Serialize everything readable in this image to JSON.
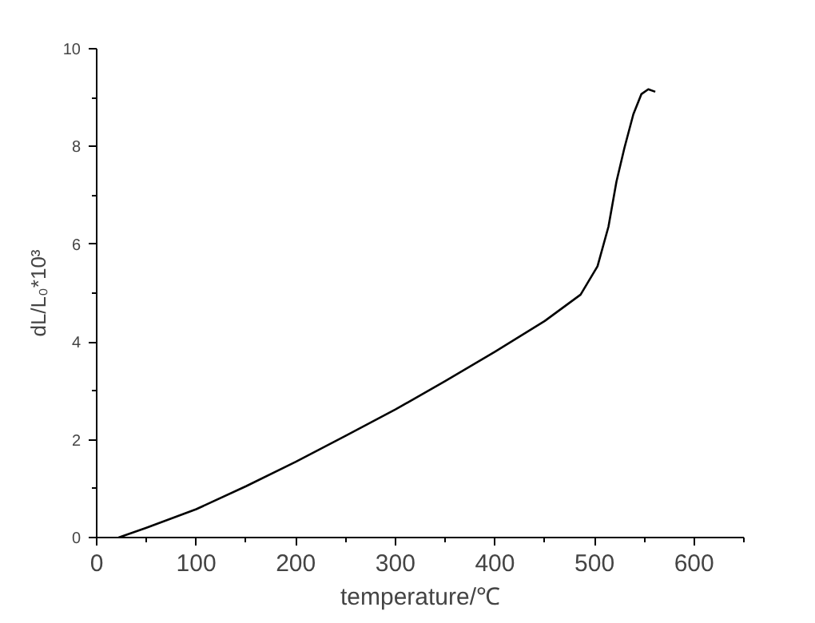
{
  "chart_data": {
    "type": "line",
    "xlabel": "temperature/℃",
    "ylabel": "dL/L₀*10³",
    "x": [
      22,
      50,
      100,
      150,
      200,
      250,
      300,
      350,
      400,
      450,
      486,
      503,
      514,
      522,
      530,
      539,
      547,
      554,
      561
    ],
    "series": [
      {
        "color": "#000000",
        "values": [
          0,
          0.2,
          0.58,
          1.05,
          1.55,
          2.08,
          2.62,
          3.2,
          3.8,
          4.43,
          4.97,
          5.55,
          6.36,
          7.28,
          7.97,
          8.66,
          9.07,
          9.17,
          9.12
        ]
      }
    ],
    "xlim": [
      0,
      650
    ],
    "xticks": [
      0,
      100,
      200,
      300,
      400,
      500,
      600
    ],
    "ylim": [
      0,
      10
    ],
    "yticks": [
      0,
      2,
      4,
      6,
      8,
      10
    ],
    "grid": false,
    "marker": "none",
    "line_style": "solid"
  }
}
